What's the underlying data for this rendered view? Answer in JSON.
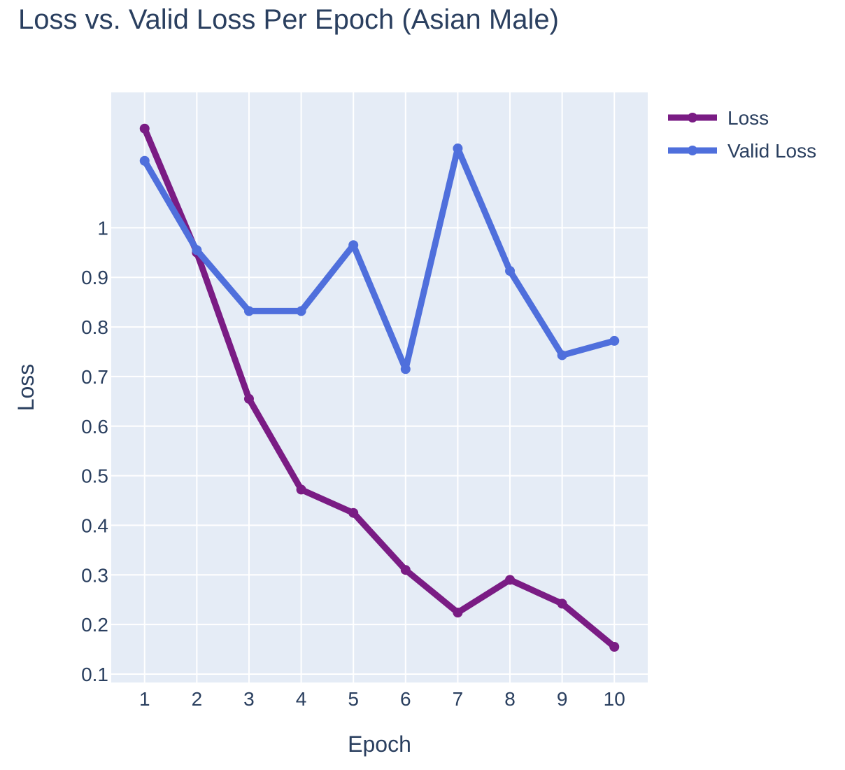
{
  "chart_data": {
    "type": "line",
    "title": "Loss vs. Valid Loss Per Epoch (Asian Male)",
    "xlabel": "Epoch",
    "ylabel": "Loss",
    "x": [
      1,
      2,
      3,
      4,
      5,
      6,
      7,
      8,
      9,
      10
    ],
    "x_tick_labels": [
      "1",
      "2",
      "3",
      "4",
      "5",
      "6",
      "7",
      "8",
      "9",
      "10"
    ],
    "y_ticks": [
      0.1,
      0.2,
      0.3,
      0.4,
      0.5,
      0.6,
      0.7,
      0.8,
      0.9,
      1
    ],
    "y_tick_labels": [
      "0.1",
      "0.2",
      "0.3",
      "0.4",
      "0.5",
      "0.6",
      "0.7",
      "0.8",
      "0.9",
      "1"
    ],
    "xlim": [
      0.36,
      10.64
    ],
    "ylim": [
      0.083,
      1.273
    ],
    "grid": true,
    "legend_position": "top-right",
    "background_color": "#e5ecf6",
    "series": [
      {
        "name": "Loss",
        "color": "#7a1c84",
        "values": [
          1.2,
          0.95,
          0.655,
          0.472,
          0.425,
          0.31,
          0.224,
          0.29,
          0.242,
          0.155
        ]
      },
      {
        "name": "Valid Loss",
        "color": "#4f6fdc",
        "values": [
          1.135,
          0.955,
          0.832,
          0.832,
          0.965,
          0.715,
          1.16,
          0.913,
          0.743,
          0.772
        ]
      }
    ]
  }
}
